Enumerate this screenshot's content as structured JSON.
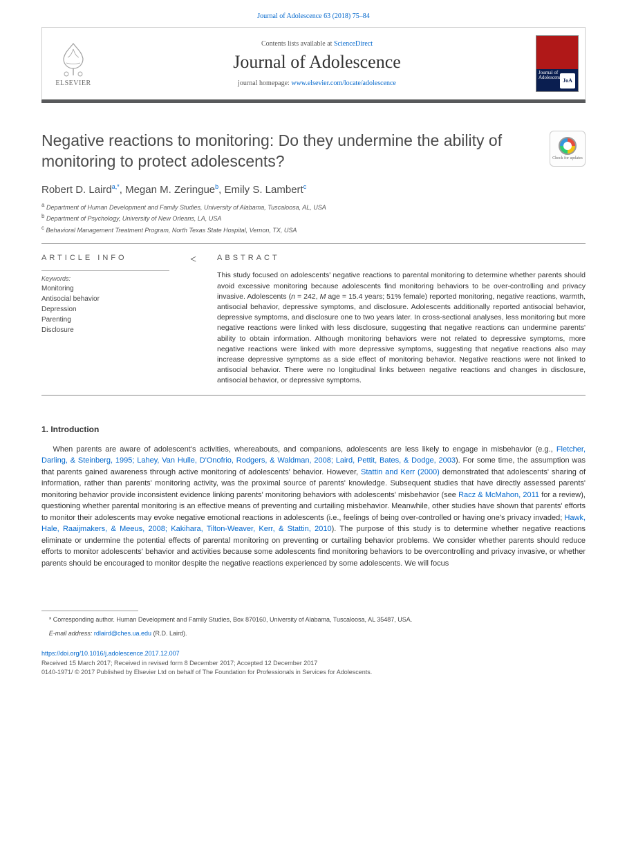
{
  "header": {
    "citation_link_text": "Journal of Adolescence 63 (2018) 75–84",
    "contents_prefix": "Contents lists available at ",
    "contents_link": "ScienceDirect",
    "journal_title": "Journal of Adolescence",
    "homepage_prefix": "journal homepage: ",
    "homepage_link": "www.elsevier.com/locate/adolescence",
    "elsevier_label": "ELSEVIER",
    "cover_band_text": "Journal of Adolescence",
    "cover_badge": "JoA"
  },
  "article": {
    "title": "Negative reactions to monitoring: Do they undermine the ability of monitoring to protect adolescents?",
    "crossmark_label": "Check for updates",
    "authors_html": "Robert D. Laird<sup>a,*</sup>, Megan M. Zeringue<sup>b</sup>, Emily S. Lambert<sup>c</sup>",
    "affiliations": [
      {
        "sup": "a",
        "text": "Department of Human Development and Family Studies, University of Alabama, Tuscaloosa, AL, USA"
      },
      {
        "sup": "b",
        "text": "Department of Psychology, University of New Orleans, LA, USA"
      },
      {
        "sup": "c",
        "text": "Behavioral Management Treatment Program, North Texas State Hospital, Vernon, TX, USA"
      }
    ]
  },
  "info": {
    "label": "ARTICLE INFO",
    "keywords_label": "Keywords:",
    "keywords": [
      "Monitoring",
      "Antisocial behavior",
      "Depression",
      "Parenting",
      "Disclosure"
    ]
  },
  "abstract": {
    "label": "ABSTRACT",
    "text": "This study focused on adolescents' negative reactions to parental monitoring to determine whether parents should avoid excessive monitoring because adolescents find monitoring behaviors to be over-controlling and privacy invasive. Adolescents (n = 242, M age = 15.4 years; 51% female) reported monitoring, negative reactions, warmth, antisocial behavior, depressive symptoms, and disclosure. Adolescents additionally reported antisocial behavior, depressive symptoms, and disclosure one to two years later. In cross-sectional analyses, less monitoring but more negative reactions were linked with less disclosure, suggesting that negative reactions can undermine parents' ability to obtain information. Although monitoring behaviors were not related to depressive symptoms, more negative reactions were linked with more depressive symptoms, suggesting that negative reactions also may increase depressive symptoms as a side effect of monitoring behavior. Negative reactions were not linked to antisocial behavior. There were no longitudinal links between negative reactions and changes in disclosure, antisocial behavior, or depressive symptoms."
  },
  "section1": {
    "heading": "1. Introduction",
    "paragraph_parts": [
      {
        "t": "text",
        "v": "When parents are aware of adolescent's activities, whereabouts, and companions, adolescents are less likely to engage in misbehavior (e.g., "
      },
      {
        "t": "link",
        "v": "Fletcher, Darling, & Steinberg, 1995; Lahey, Van Hulle, D'Onofrio, Rodgers, & Waldman, 2008; Laird, Pettit, Bates, & Dodge, 2003"
      },
      {
        "t": "text",
        "v": "). For some time, the assumption was that parents gained awareness through active monitoring of adolescents' behavior. However, "
      },
      {
        "t": "link",
        "v": "Stattin and Kerr (2000)"
      },
      {
        "t": "text",
        "v": " demonstrated that adolescents' sharing of information, rather than parents' monitoring activity, was the proximal source of parents' knowledge. Subsequent studies that have directly assessed parents' monitoring behavior provide inconsistent evidence linking parents' monitoring behaviors with adolescents' misbehavior (see "
      },
      {
        "t": "link",
        "v": "Racz & McMahon, 2011"
      },
      {
        "t": "text",
        "v": " for a review), questioning whether parental monitoring is an effective means of preventing and curtailing misbehavior. Meanwhile, other studies have shown that parents' efforts to monitor their adolescents may evoke negative emotional reactions in adolescents (i.e., feelings of being over-controlled or having one's privacy invaded; "
      },
      {
        "t": "link",
        "v": "Hawk, Hale, Raaijmakers, & Meeus, 2008; Kakihara, Tilton-Weaver, Kerr, & Stattin, 2010"
      },
      {
        "t": "text",
        "v": "). The purpose of this study is to determine whether negative reactions eliminate or undermine the potential effects of parental monitoring on preventing or curtailing behavior problems. We consider whether parents should reduce efforts to monitor adolescents' behavior and activities because some adolescents find monitoring behaviors to be overcontrolling and privacy invasive, or whether parents should be encouraged to monitor despite the negative reactions experienced by some adolescents. We will focus"
      }
    ]
  },
  "footnote": {
    "corr_prefix": "* Corresponding author. ",
    "corr_text": "Human Development and Family Studies, Box 870160, University of Alabama, Tuscaloosa, AL 35487, USA.",
    "email_label": "E-mail address:",
    "email": "rdlaird@ches.ua.edu",
    "email_suffix": "(R.D. Laird)."
  },
  "bottom": {
    "doi": "https://doi.org/10.1016/j.adolescence.2017.12.007",
    "history": "Received 15 March 2017; Received in revised form 8 December 2017; Accepted 12 December 2017",
    "copyright": "0140-1971/ © 2017 Published by Elsevier Ltd on behalf of The Foundation for Professionals in Services for Adolescents."
  },
  "colors": {
    "link": "#0066cc",
    "rule_dark": "#58595b",
    "cover_red": "#b01818",
    "cover_blue": "#0a1e50"
  }
}
